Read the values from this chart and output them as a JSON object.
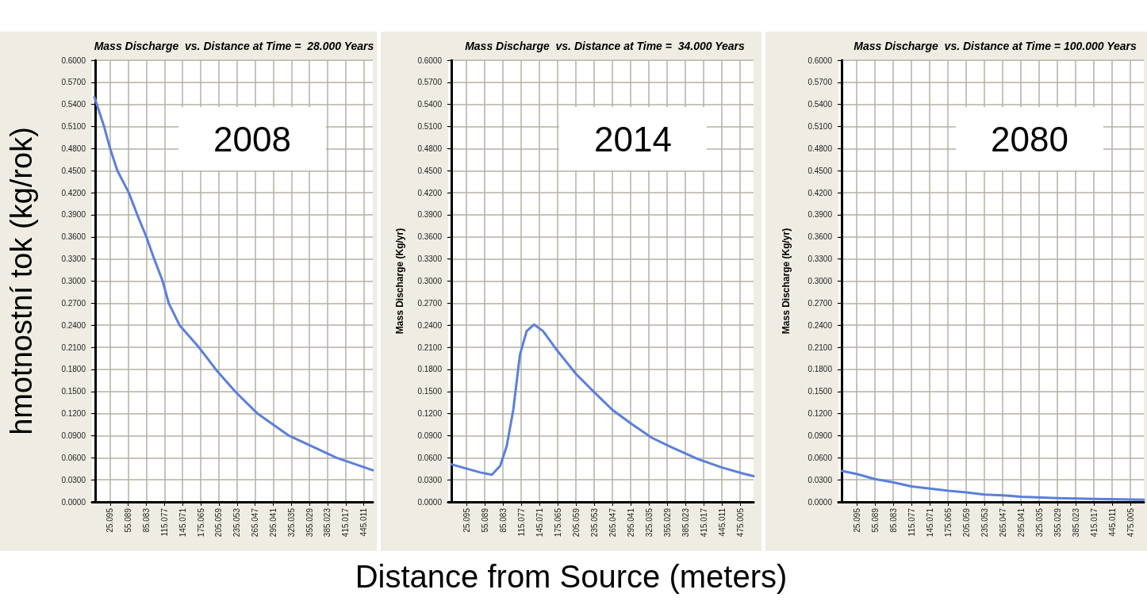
{
  "chart_data": [
    {
      "type": "line",
      "title": "Mass Discharge  vs. Distance at Time =  28.000 Years",
      "ylabel": "hmotnostní tok (kg/rok)",
      "annotations": [
        "2008"
      ],
      "series": [
        {
          "color": "#5b7fdb",
          "x": [
            -1,
            15,
            25,
            37,
            56,
            70,
            85,
            98,
            112,
            122,
            140,
            172,
            200,
            232,
            269,
            321,
            400,
            460
          ],
          "values": [
            0.55,
            0.51,
            0.48,
            0.45,
            0.42,
            0.39,
            0.36,
            0.33,
            0.3,
            0.27,
            0.24,
            0.21,
            0.18,
            0.15,
            0.12,
            0.09,
            0.06,
            0.043
          ]
        }
      ],
      "xlim": [
        -5,
        460
      ],
      "xticks": [
        25.095,
        55.089,
        85.083,
        115.077,
        145.071,
        175.065,
        205.059,
        235.053,
        265.047,
        295.041,
        325.035,
        355.029,
        385.023,
        415.017,
        445.011
      ],
      "ylim": [
        0,
        0.6
      ],
      "yticks": [
        {
          "value": 0,
          "label": "0.0000"
        },
        {
          "value": 0.03,
          "label": "0.0300"
        },
        {
          "value": 0.06,
          "label": "0.0600"
        },
        {
          "value": 0.09,
          "label": "0.0900"
        },
        {
          "value": 0.12,
          "label": "0.1200"
        },
        {
          "value": 0.15,
          "label": "0.1500"
        },
        {
          "value": 0.18,
          "label": "0.1800"
        },
        {
          "value": 0.21,
          "label": "0.2100"
        },
        {
          "value": 0.24,
          "label": "0.2400"
        },
        {
          "value": 0.27,
          "label": "0.2700"
        },
        {
          "value": 0.3,
          "label": "0.3000"
        },
        {
          "value": 0.33,
          "label": "0.3300"
        },
        {
          "value": 0.36,
          "label": "0.3600"
        },
        {
          "value": 0.39,
          "label": "0.3900"
        },
        {
          "value": 0.42,
          "label": "0.4200"
        },
        {
          "value": 0.45,
          "label": "0.4500"
        },
        {
          "value": 0.48,
          "label": "0.4800"
        },
        {
          "value": 0.51,
          "label": "0.5100"
        },
        {
          "value": 0.54,
          "label": "0.5400"
        },
        {
          "value": 0.57,
          "label": "0.5700"
        },
        {
          "value": 0.6,
          "label": "0.6000"
        }
      ],
      "grid": true,
      "marker": "none",
      "line_style": "solid"
    },
    {
      "type": "line",
      "title": "Mass Discharge  vs. Distance at Time =  34.000 Years",
      "ylabel": "Mass Discharge (Kg/yr)",
      "xlabel": "Distance from Source (meters)",
      "annotations": [
        "2014"
      ],
      "series": [
        {
          "color": "#5b7fdb",
          "x": [
            0.1,
            47.9,
            66.9,
            80.5,
            91.3,
            102,
            113,
            124,
            136,
            151,
            173,
            205,
            235,
            265,
            298,
            330,
            363,
            406,
            444,
            482,
            497
          ],
          "values": [
            0.051,
            0.04,
            0.037,
            0.049,
            0.076,
            0.125,
            0.2,
            0.232,
            0.241,
            0.232,
            0.207,
            0.174,
            0.149,
            0.125,
            0.105,
            0.087,
            0.074,
            0.058,
            0.047,
            0.038,
            0.035
          ]
        }
      ],
      "xlim": [
        -5,
        497
      ],
      "xticks": [
        25.095,
        55.089,
        85.083,
        115.077,
        145.071,
        175.065,
        205.059,
        235.053,
        265.047,
        295.041,
        325.035,
        355.029,
        385.023,
        415.017,
        445.011,
        475.005
      ],
      "ylim": [
        0,
        0.6
      ],
      "yticks": [
        {
          "value": 0,
          "label": "0.0000"
        },
        {
          "value": 0.03,
          "label": "0.0300"
        },
        {
          "value": 0.06,
          "label": "0.0600"
        },
        {
          "value": 0.09,
          "label": "0.0900"
        },
        {
          "value": 0.12,
          "label": "0.1200"
        },
        {
          "value": 0.15,
          "label": "0.1500"
        },
        {
          "value": 0.18,
          "label": "0.1800"
        },
        {
          "value": 0.21,
          "label": "0.2100"
        },
        {
          "value": 0.24,
          "label": "0.2400"
        },
        {
          "value": 0.27,
          "label": "0.2700"
        },
        {
          "value": 0.3,
          "label": "0.3000"
        },
        {
          "value": 0.33,
          "label": "0.3300"
        },
        {
          "value": 0.36,
          "label": "0.3600"
        },
        {
          "value": 0.39,
          "label": "0.3900"
        },
        {
          "value": 0.42,
          "label": "0.4200"
        },
        {
          "value": 0.45,
          "label": "0.4500"
        },
        {
          "value": 0.48,
          "label": "0.4800"
        },
        {
          "value": 0.51,
          "label": "0.5100"
        },
        {
          "value": 0.54,
          "label": "0.5400"
        },
        {
          "value": 0.57,
          "label": "0.5700"
        },
        {
          "value": 0.6,
          "label": "0.6000"
        }
      ],
      "grid": true,
      "marker": "none",
      "line_style": "solid"
    },
    {
      "type": "line",
      "title": "Mass Discharge  vs. Distance at Time = 100.000 Years",
      "ylabel": "Mass Discharge (Kg/yr)",
      "annotations": [
        "2080"
      ],
      "series": [
        {
          "color": "#5b7fdb",
          "x": [
            0.6,
            25,
            55,
            83,
            115,
            146,
            176,
            205,
            235,
            265,
            295,
            355,
            415,
            497
          ],
          "values": [
            0.042,
            0.038,
            0.031,
            0.027,
            0.021,
            0.018,
            0.015,
            0.013,
            0.01,
            0.009,
            0.007,
            0.005,
            0.004,
            0.003
          ]
        }
      ],
      "xlim": [
        -5,
        497
      ],
      "xticks": [
        25.095,
        55.089,
        85.083,
        115.077,
        145.071,
        175.065,
        205.059,
        235.053,
        265.047,
        295.041,
        325.035,
        355.029,
        385.023,
        415.017,
        445.011,
        475.005
      ],
      "ylim": [
        0,
        0.6
      ],
      "yticks": [
        {
          "value": 0,
          "label": "0.0000"
        },
        {
          "value": 0.03,
          "label": "0.0300"
        },
        {
          "value": 0.06,
          "label": "0.0600"
        },
        {
          "value": 0.09,
          "label": "0.0900"
        },
        {
          "value": 0.12,
          "label": "0.1200"
        },
        {
          "value": 0.15,
          "label": "0.1500"
        },
        {
          "value": 0.18,
          "label": "0.1800"
        },
        {
          "value": 0.21,
          "label": "0.2100"
        },
        {
          "value": 0.24,
          "label": "0.2400"
        },
        {
          "value": 0.27,
          "label": "0.2700"
        },
        {
          "value": 0.3,
          "label": "0.3000"
        },
        {
          "value": 0.33,
          "label": "0.3300"
        },
        {
          "value": 0.36,
          "label": "0.3600"
        },
        {
          "value": 0.39,
          "label": "0.3900"
        },
        {
          "value": 0.42,
          "label": "0.4200"
        },
        {
          "value": 0.45,
          "label": "0.4500"
        },
        {
          "value": 0.48,
          "label": "0.4800"
        },
        {
          "value": 0.51,
          "label": "0.5100"
        },
        {
          "value": 0.54,
          "label": "0.5400"
        },
        {
          "value": 0.57,
          "label": "0.5700"
        },
        {
          "value": 0.6,
          "label": "0.6000"
        }
      ],
      "grid": true,
      "marker": "none",
      "line_style": "solid"
    }
  ]
}
